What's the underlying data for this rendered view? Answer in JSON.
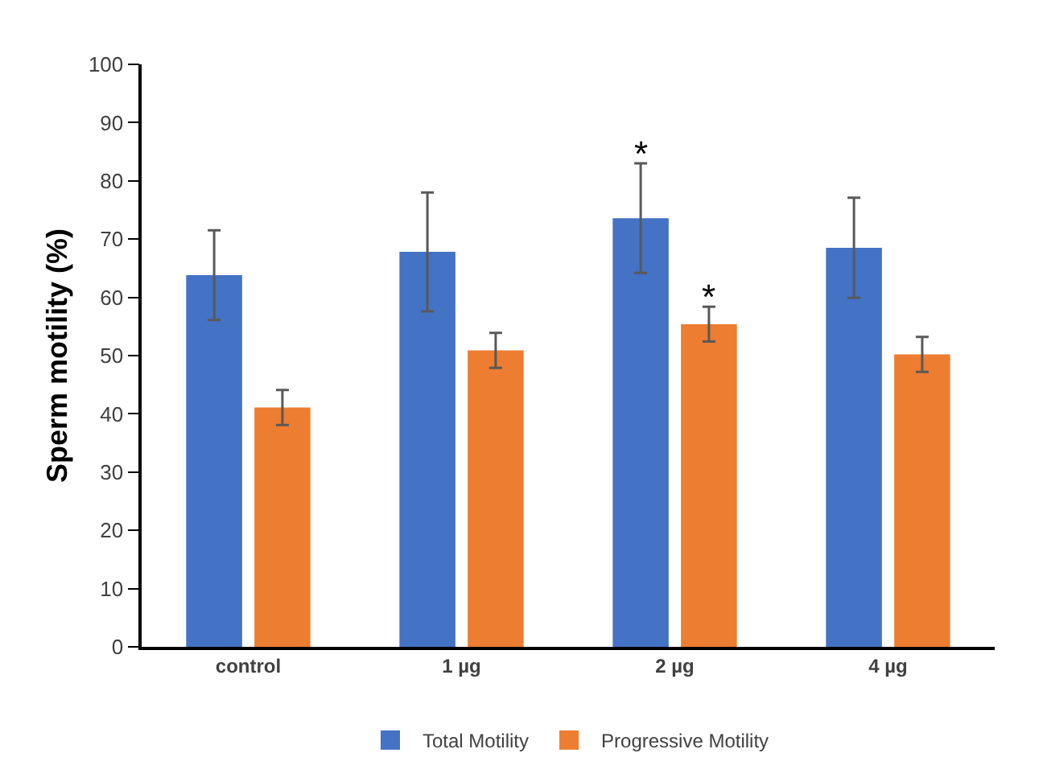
{
  "chart_data": {
    "type": "bar",
    "ylabel": "Sperm motility (%)",
    "categories": [
      "control",
      "1 µg",
      "2 µg",
      "4 µg"
    ],
    "series": [
      {
        "name": "Total Motility",
        "color": "#4472c4",
        "values": [
          63.8,
          67.8,
          73.6,
          68.5
        ],
        "errors": [
          7.7,
          10.2,
          9.4,
          8.6
        ]
      },
      {
        "name": "Progressive Motility",
        "color": "#ed7d31",
        "values": [
          41.1,
          50.9,
          55.4,
          50.2
        ],
        "errors": [
          3,
          3,
          3,
          3
        ]
      }
    ],
    "annotations": [
      {
        "text": "*",
        "x": "2 µg",
        "y": 73.6
      },
      {
        "text": "*",
        "x": "2 µg",
        "y": 55.4
      }
    ],
    "ylim": [
      0,
      100
    ],
    "yticks": [
      0,
      10,
      20,
      30,
      40,
      50,
      60,
      70,
      80,
      90,
      100
    ],
    "grid": false,
    "legend": "bottom"
  }
}
